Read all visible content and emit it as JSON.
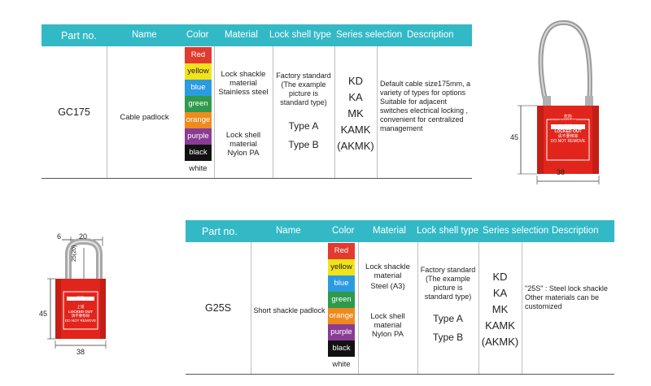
{
  "headers": [
    "Part no.",
    "Name",
    "Color",
    "Material",
    "Lock shell type",
    "Series selection",
    "Description"
  ],
  "colors": [
    {
      "label": "Red",
      "bg": "#e23a2e",
      "fg": "#ffffff"
    },
    {
      "label": "yellow",
      "bg": "#f2e21a",
      "fg": "#222222"
    },
    {
      "label": "blue",
      "bg": "#2b9be0",
      "fg": "#ffffff"
    },
    {
      "label": "green",
      "bg": "#2f9a4b",
      "fg": "#ffffff"
    },
    {
      "label": "orange",
      "bg": "#ef8a1f",
      "fg": "#ffffff"
    },
    {
      "label": "purple",
      "bg": "#8a3c95",
      "fg": "#ffffff"
    },
    {
      "label": "black",
      "bg": "#111111",
      "fg": "#ffffff"
    },
    {
      "label": "white",
      "bg": "#ffffff",
      "fg": "#222222"
    }
  ],
  "product1": {
    "part_no": "GC175",
    "name": "Cable padlock",
    "material_1": [
      "Lock shackle",
      "material",
      "Stainless steel"
    ],
    "material_2": [
      "Lock shell",
      "material",
      "Nylon PA"
    ],
    "shell_note": [
      "Factory standard",
      "(The example",
      "picture is",
      "standard type)"
    ],
    "shell_types": [
      "Type A",
      "Type B"
    ],
    "series": [
      "KD",
      "KA",
      "MK",
      "KAMK",
      "(AKMK)"
    ],
    "description": [
      "Default cable size175mm, a",
      "variety of types for options",
      "Suitable for adjacent",
      "switches electrical locking ,",
      "convenient for centralized",
      "management"
    ],
    "dim_height": "45",
    "dim_width": "38"
  },
  "product2": {
    "part_no": "G25S",
    "name": "Short shackle padlock",
    "material_1": [
      "Lock shackle",
      "material",
      "Steel (A3)"
    ],
    "material_2": [
      "Lock shell",
      "material",
      "Nylon PA"
    ],
    "shell_note": [
      "Factory standard",
      "(The example",
      "picture is",
      "standard type)"
    ],
    "shell_types": [
      "Type A",
      "Type B"
    ],
    "series": [
      "KD",
      "KA",
      "MK",
      "KAMK",
      "(AKMK)"
    ],
    "description": [
      "\"25S\" : Steel lock shackle",
      "Other materials can be",
      "customized"
    ],
    "dim_top_left": "6",
    "dim_top": "20",
    "dim_shackle": "25(20)",
    "dim_height": "45",
    "dim_width": "38"
  },
  "lock_label": {
    "cn_top": "危险",
    "danger": "DANGER",
    "cn_mid": "上锁",
    "locked_out": "LOCKED OUT",
    "cn_bottom": "请不要移除",
    "do_not_remove": "DO NOT REMOVE"
  }
}
